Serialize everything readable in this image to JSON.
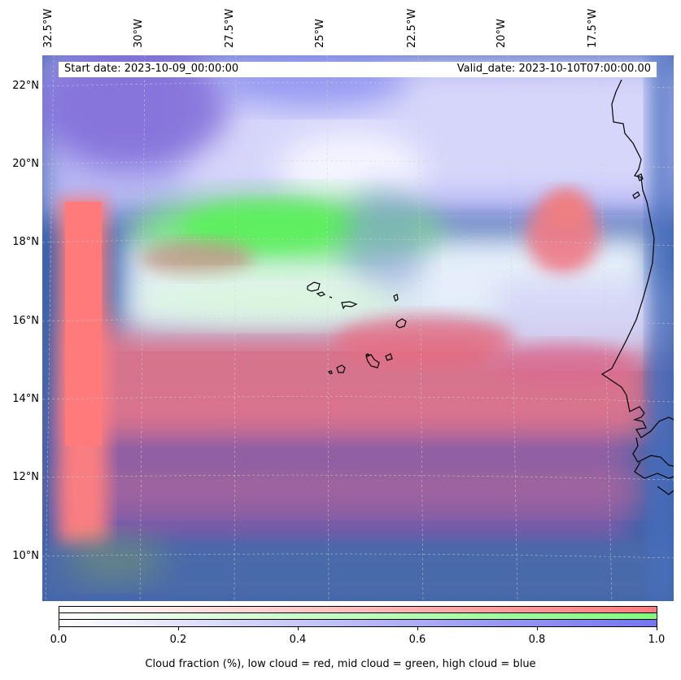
{
  "header": {
    "start_date": "Start date: 2023-10-09_00:00:00",
    "valid_date": "Valid_date: 2023-10-10T07:00:00.00"
  },
  "axes": {
    "longitude_labels": [
      "32.5°W",
      "30°W",
      "27.5°W",
      "25°W",
      "22.5°W",
      "20°W",
      "17.5°W"
    ],
    "latitude_labels": [
      "22°N",
      "20°N",
      "18°N",
      "16°N",
      "14°N",
      "12°N",
      "10°N"
    ]
  },
  "colorbar": {
    "tick_labels": [
      "0.0",
      "0.2",
      "0.4",
      "0.6",
      "0.8",
      "1.0"
    ],
    "caption": "Cloud fraction (%), low cloud = red, mid cloud = green, high cloud = blue",
    "low_color": "#ff7a7a",
    "mid_color": "#7dff7d",
    "high_color": "#7474f0"
  },
  "map": {
    "background_dark": "#3a5fa8",
    "coastline_color": "#000000",
    "gridline_color": "#c8c8c8"
  }
}
